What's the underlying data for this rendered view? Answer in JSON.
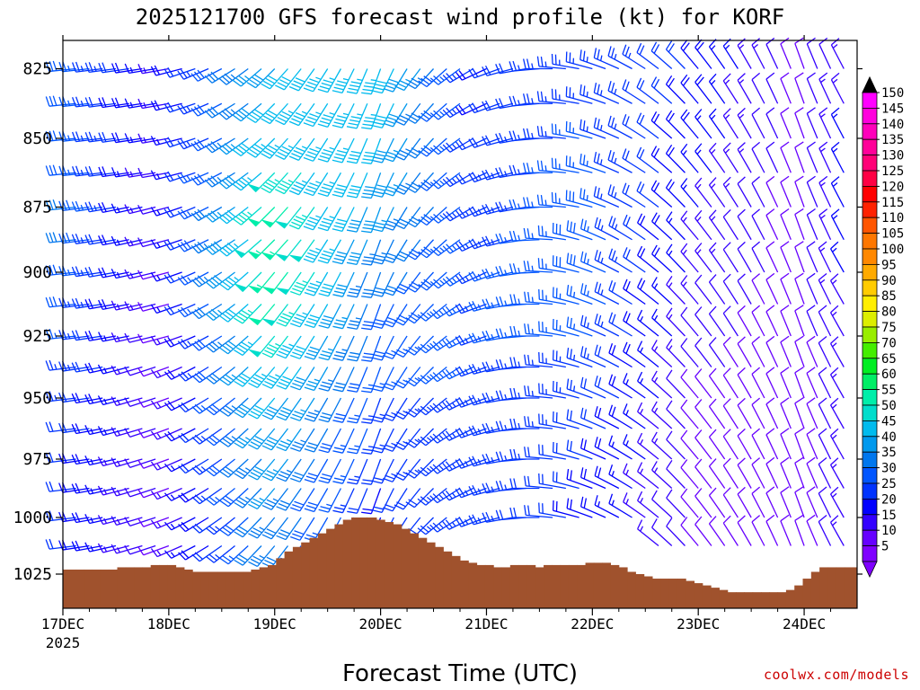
{
  "chart_data": {
    "type": "wind-profile",
    "title": "2025121700 GFS forecast wind profile (kt) for KORF",
    "xlabel": "Forecast Time (UTC)",
    "ylabel": "Pressure (hPa)",
    "start_year": "2025",
    "x_tick_labels": [
      "17DEC",
      "18DEC",
      "19DEC",
      "20DEC",
      "21DEC",
      "22DEC",
      "23DEC",
      "24DEC"
    ],
    "x_range_hours": [
      0,
      180
    ],
    "x_step_hours": 3,
    "y_tick_labels": [
      "825",
      "850",
      "875",
      "900",
      "925",
      "950",
      "975",
      "1000",
      "1025"
    ],
    "y_tick_values": [
      825,
      850,
      875,
      900,
      925,
      950,
      975,
      1000,
      1025
    ],
    "y_range_hpa": [
      813,
      1037
    ],
    "pressure_levels": [
      825,
      837.5,
      850,
      862.5,
      875,
      887.5,
      900,
      912.5,
      925,
      937.5,
      950,
      962.5,
      975,
      987.5,
      1000,
      1012.5,
      1025
    ],
    "colorbar_values": [
      5,
      10,
      15,
      20,
      25,
      30,
      35,
      40,
      45,
      50,
      55,
      60,
      65,
      70,
      75,
      80,
      85,
      90,
      95,
      100,
      105,
      110,
      115,
      120,
      125,
      130,
      135,
      140,
      145,
      150
    ],
    "colorbar_colors": [
      "#7f00ff",
      "#6600ff",
      "#3300ff",
      "#0000ff",
      "#0033ff",
      "#0055ff",
      "#0077ee",
      "#0099ee",
      "#00bbee",
      "#00ddcc",
      "#00eeaa",
      "#00ee66",
      "#00ee22",
      "#44ee00",
      "#99ee00",
      "#ddee00",
      "#ffee00",
      "#ffcc00",
      "#ffaa00",
      "#ff8800",
      "#ff7700",
      "#ff5500",
      "#ff2200",
      "#ff0000",
      "#ff0044",
      "#ff0077",
      "#ff0099",
      "#ff00bb",
      "#ff00dd",
      "#ff00ff"
    ],
    "terrain_color": "#a0522d",
    "surface_pressure": [
      1023,
      1023,
      1023,
      1023,
      1023,
      1023,
      1023,
      1022,
      1022,
      1022,
      1022,
      1021,
      1021,
      1021,
      1022,
      1023,
      1024,
      1024,
      1024,
      1024,
      1024,
      1024,
      1024,
      1023,
      1022,
      1021,
      1018,
      1015,
      1013,
      1011,
      1009,
      1007,
      1005,
      1003,
      1001,
      1000,
      1000,
      1000,
      1001,
      1002,
      1003,
      1005,
      1007,
      1009,
      1011,
      1013,
      1015,
      1017,
      1019,
      1020,
      1021,
      1021,
      1022,
      1022,
      1021,
      1021,
      1021,
      1022,
      1021,
      1021,
      1021,
      1021,
      1021,
      1020,
      1020,
      1020,
      1021,
      1022,
      1024,
      1025,
      1026,
      1027,
      1027,
      1027,
      1027,
      1028,
      1029,
      1030,
      1031,
      1032,
      1033,
      1033,
      1033,
      1033,
      1033,
      1033,
      1033,
      1032,
      1030,
      1027,
      1024,
      1022,
      1022,
      1022,
      1022,
      1022
    ],
    "wind_direction_deg": [
      [
        265,
        265,
        265,
        265,
        265,
        265,
        265,
        265,
        265,
        265,
        265,
        265,
        265,
        265,
        265,
        265,
        265
      ],
      [
        260,
        260,
        260,
        260,
        255,
        255,
        255,
        255,
        255,
        250,
        250,
        250,
        250,
        250,
        250,
        250,
        250
      ],
      [
        225,
        225,
        225,
        225,
        225,
        225,
        220,
        220,
        220,
        220,
        220,
        220,
        220,
        220,
        220,
        220,
        220
      ],
      [
        200,
        200,
        200,
        200,
        200,
        200,
        200,
        200,
        200,
        200,
        200,
        200,
        200,
        200,
        200,
        200,
        200
      ],
      [
        245,
        245,
        245,
        245,
        245,
        245,
        245,
        250,
        250,
        250,
        250,
        250,
        250,
        250,
        250,
        250,
        250
      ],
      [
        285,
        285,
        285,
        285,
        285,
        290,
        290,
        290,
        290,
        290,
        290,
        290,
        290,
        290,
        290,
        290,
        290
      ],
      [
        320,
        320,
        320,
        320,
        320,
        320,
        320,
        320,
        320,
        320,
        320,
        320,
        320,
        320,
        320,
        320,
        320
      ],
      [
        340,
        340,
        340,
        340,
        340,
        340,
        340,
        340,
        340,
        340,
        340,
        340,
        340,
        340,
        340,
        340,
        340
      ],
      [
        320,
        320,
        320,
        320,
        320,
        320,
        315,
        315,
        315,
        315,
        315,
        315,
        315,
        315,
        315,
        315,
        315
      ]
    ],
    "wind_speed_kt": [
      [
        30,
        30,
        32,
        32,
        33,
        33,
        32,
        30,
        28,
        27,
        25,
        24,
        23,
        22,
        22,
        22,
        22
      ],
      [
        15,
        14,
        13,
        12,
        12,
        11,
        10,
        10,
        10,
        10,
        10,
        10,
        10,
        10,
        10,
        10,
        10
      ],
      [
        40,
        42,
        45,
        48,
        52,
        55,
        55,
        52,
        48,
        45,
        42,
        40,
        38,
        36,
        34,
        33,
        32
      ],
      [
        45,
        44,
        42,
        40,
        38,
        35,
        32,
        30,
        28,
        26,
        25,
        23,
        22,
        20,
        20,
        20,
        20
      ],
      [
        20,
        20,
        21,
        22,
        23,
        24,
        25,
        25,
        25,
        25,
        25,
        25,
        24,
        24,
        24,
        23,
        23
      ],
      [
        25,
        25,
        26,
        27,
        28,
        28,
        28,
        27,
        26,
        25,
        24,
        22,
        21,
        20,
        19,
        18,
        17
      ],
      [
        20,
        19,
        18,
        17,
        16,
        15,
        14,
        13,
        12,
        11,
        10,
        10,
        10,
        10,
        10,
        10,
        10
      ],
      [
        8,
        8,
        8,
        8,
        8,
        8,
        8,
        8,
        8,
        8,
        8,
        8,
        8,
        8,
        8,
        8,
        8
      ],
      [
        25,
        26,
        27,
        28,
        28,
        28,
        27,
        26,
        25,
        24,
        23,
        22,
        21,
        20,
        20,
        20,
        20
      ]
    ]
  }
}
